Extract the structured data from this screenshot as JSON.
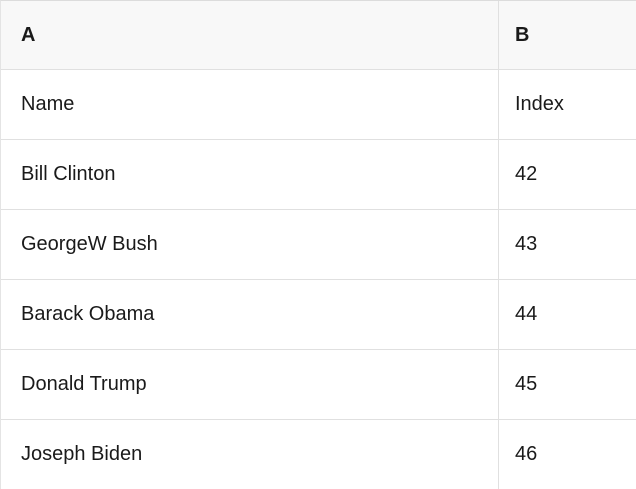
{
  "table": {
    "column_headers": [
      "A",
      "B"
    ],
    "rows": [
      [
        "Name",
        "Index"
      ],
      [
        "Bill Clinton",
        "42"
      ],
      [
        "GeorgeW Bush",
        "43"
      ],
      [
        "Barack Obama",
        "44"
      ],
      [
        "Donald Trump",
        "45"
      ],
      [
        "Joseph Biden",
        "46"
      ]
    ]
  },
  "colors": {
    "header_background": "#f8f8f8",
    "row_background": "#ffffff",
    "border": "#e0e0e0",
    "text": "#1a1a1a"
  }
}
